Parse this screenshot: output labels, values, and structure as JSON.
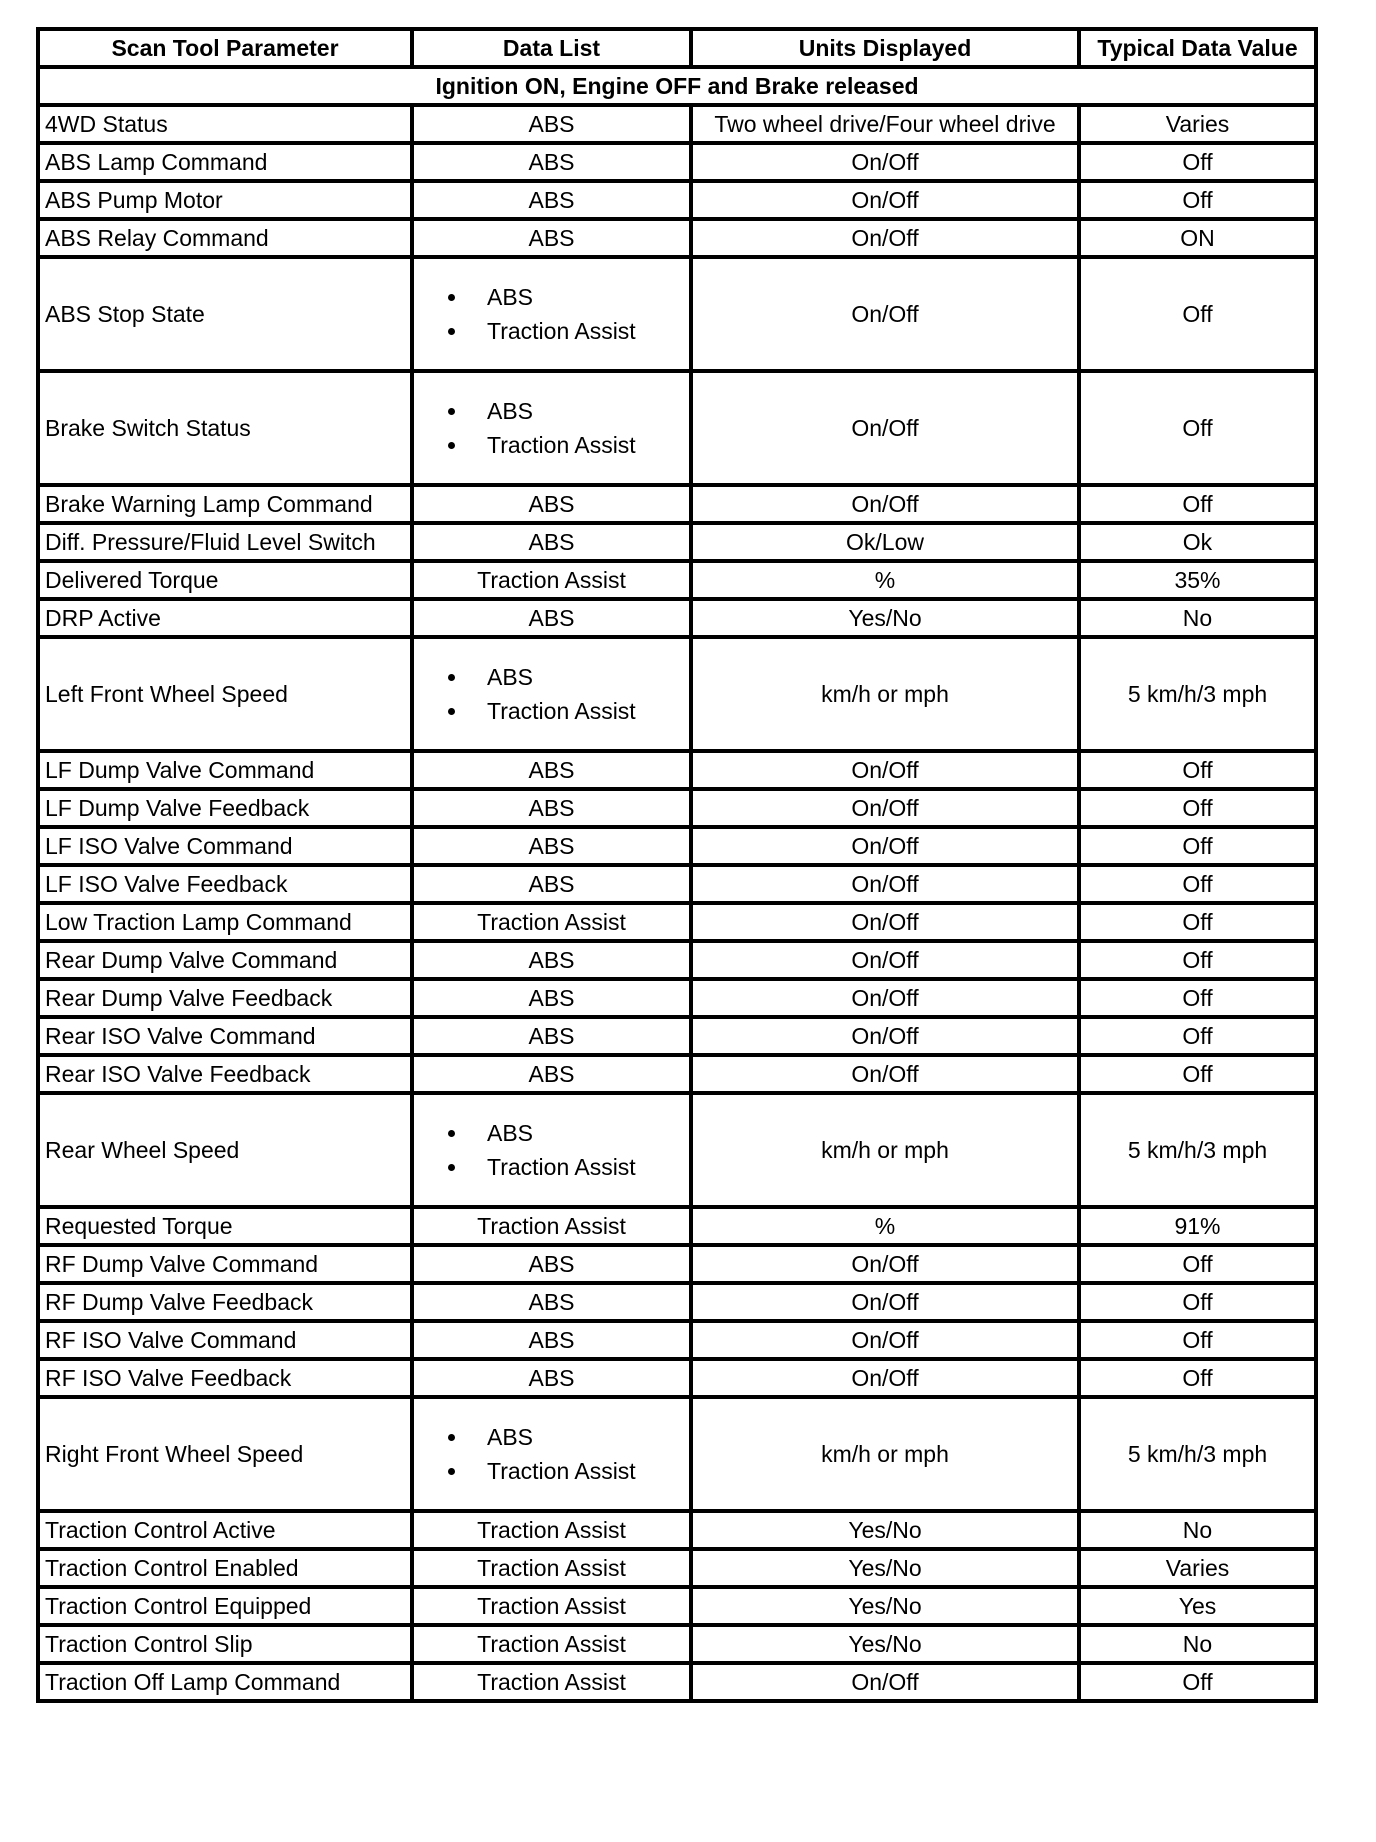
{
  "headers": [
    "Scan Tool Parameter",
    "Data List",
    "Units Displayed",
    "Typical Data Value"
  ],
  "section": "Ignition ON, Engine OFF and Brake released",
  "rows": [
    {
      "param": "4WD Status",
      "list": [
        "ABS"
      ],
      "units": "Two wheel drive/Four wheel drive",
      "value": "Varies"
    },
    {
      "param": "ABS Lamp Command",
      "list": [
        "ABS"
      ],
      "units": "On/Off",
      "value": "Off"
    },
    {
      "param": "ABS Pump Motor",
      "list": [
        "ABS"
      ],
      "units": "On/Off",
      "value": "Off"
    },
    {
      "param": "ABS Relay Command",
      "list": [
        "ABS"
      ],
      "units": "On/Off",
      "value": "ON"
    },
    {
      "param": "ABS Stop State",
      "list": [
        "ABS",
        "Traction Assist"
      ],
      "units": "On/Off",
      "value": "Off"
    },
    {
      "param": "Brake Switch Status",
      "list": [
        "ABS",
        "Traction Assist"
      ],
      "units": "On/Off",
      "value": "Off"
    },
    {
      "param": "Brake Warning Lamp Command",
      "list": [
        "ABS"
      ],
      "units": "On/Off",
      "value": "Off"
    },
    {
      "param": "Diff. Pressure/Fluid Level Switch",
      "list": [
        "ABS"
      ],
      "units": "Ok/Low",
      "value": "Ok"
    },
    {
      "param": "Delivered Torque",
      "list": [
        "Traction Assist"
      ],
      "units": "%",
      "value": "35%"
    },
    {
      "param": "DRP Active",
      "list": [
        "ABS"
      ],
      "units": "Yes/No",
      "value": "No"
    },
    {
      "param": "Left Front Wheel Speed",
      "list": [
        "ABS",
        "Traction Assist"
      ],
      "units": "km/h or mph",
      "value": "5 km/h/3 mph"
    },
    {
      "param": "LF Dump Valve Command",
      "list": [
        "ABS"
      ],
      "units": "On/Off",
      "value": "Off"
    },
    {
      "param": "LF Dump Valve Feedback",
      "list": [
        "ABS"
      ],
      "units": "On/Off",
      "value": "Off"
    },
    {
      "param": "LF ISO Valve Command",
      "list": [
        "ABS"
      ],
      "units": "On/Off",
      "value": "Off"
    },
    {
      "param": "LF ISO Valve Feedback",
      "list": [
        "ABS"
      ],
      "units": "On/Off",
      "value": "Off"
    },
    {
      "param": "Low Traction Lamp Command",
      "list": [
        "Traction Assist"
      ],
      "units": "On/Off",
      "value": "Off"
    },
    {
      "param": "Rear Dump Valve Command",
      "list": [
        "ABS"
      ],
      "units": "On/Off",
      "value": "Off"
    },
    {
      "param": "Rear Dump Valve Feedback",
      "list": [
        "ABS"
      ],
      "units": "On/Off",
      "value": "Off"
    },
    {
      "param": "Rear ISO Valve Command",
      "list": [
        "ABS"
      ],
      "units": "On/Off",
      "value": "Off"
    },
    {
      "param": "Rear ISO Valve Feedback",
      "list": [
        "ABS"
      ],
      "units": "On/Off",
      "value": "Off"
    },
    {
      "param": "Rear Wheel Speed",
      "list": [
        "ABS",
        "Traction Assist"
      ],
      "units": "km/h or mph",
      "value": "5 km/h/3 mph"
    },
    {
      "param": "Requested Torque",
      "list": [
        "Traction Assist"
      ],
      "units": "%",
      "value": "91%"
    },
    {
      "param": "RF Dump Valve Command",
      "list": [
        "ABS"
      ],
      "units": "On/Off",
      "value": "Off"
    },
    {
      "param": "RF Dump Valve Feedback",
      "list": [
        "ABS"
      ],
      "units": "On/Off",
      "value": "Off"
    },
    {
      "param": "RF ISO Valve Command",
      "list": [
        "ABS"
      ],
      "units": "On/Off",
      "value": "Off"
    },
    {
      "param": "RF ISO Valve Feedback",
      "list": [
        "ABS"
      ],
      "units": "On/Off",
      "value": "Off"
    },
    {
      "param": "Right Front Wheel Speed",
      "list": [
        "ABS",
        "Traction Assist"
      ],
      "units": "km/h or mph",
      "value": "5 km/h/3 mph"
    },
    {
      "param": "Traction Control Active",
      "list": [
        "Traction Assist"
      ],
      "units": "Yes/No",
      "value": "No"
    },
    {
      "param": "Traction Control Enabled",
      "list": [
        "Traction Assist"
      ],
      "units": "Yes/No",
      "value": "Varies"
    },
    {
      "param": "Traction Control Equipped",
      "list": [
        "Traction Assist"
      ],
      "units": "Yes/No",
      "value": "Yes"
    },
    {
      "param": "Traction Control Slip",
      "list": [
        "Traction Assist"
      ],
      "units": "Yes/No",
      "value": "No"
    },
    {
      "param": "Traction Off Lamp Command",
      "list": [
        "Traction Assist"
      ],
      "units": "On/Off",
      "value": "Off"
    }
  ]
}
